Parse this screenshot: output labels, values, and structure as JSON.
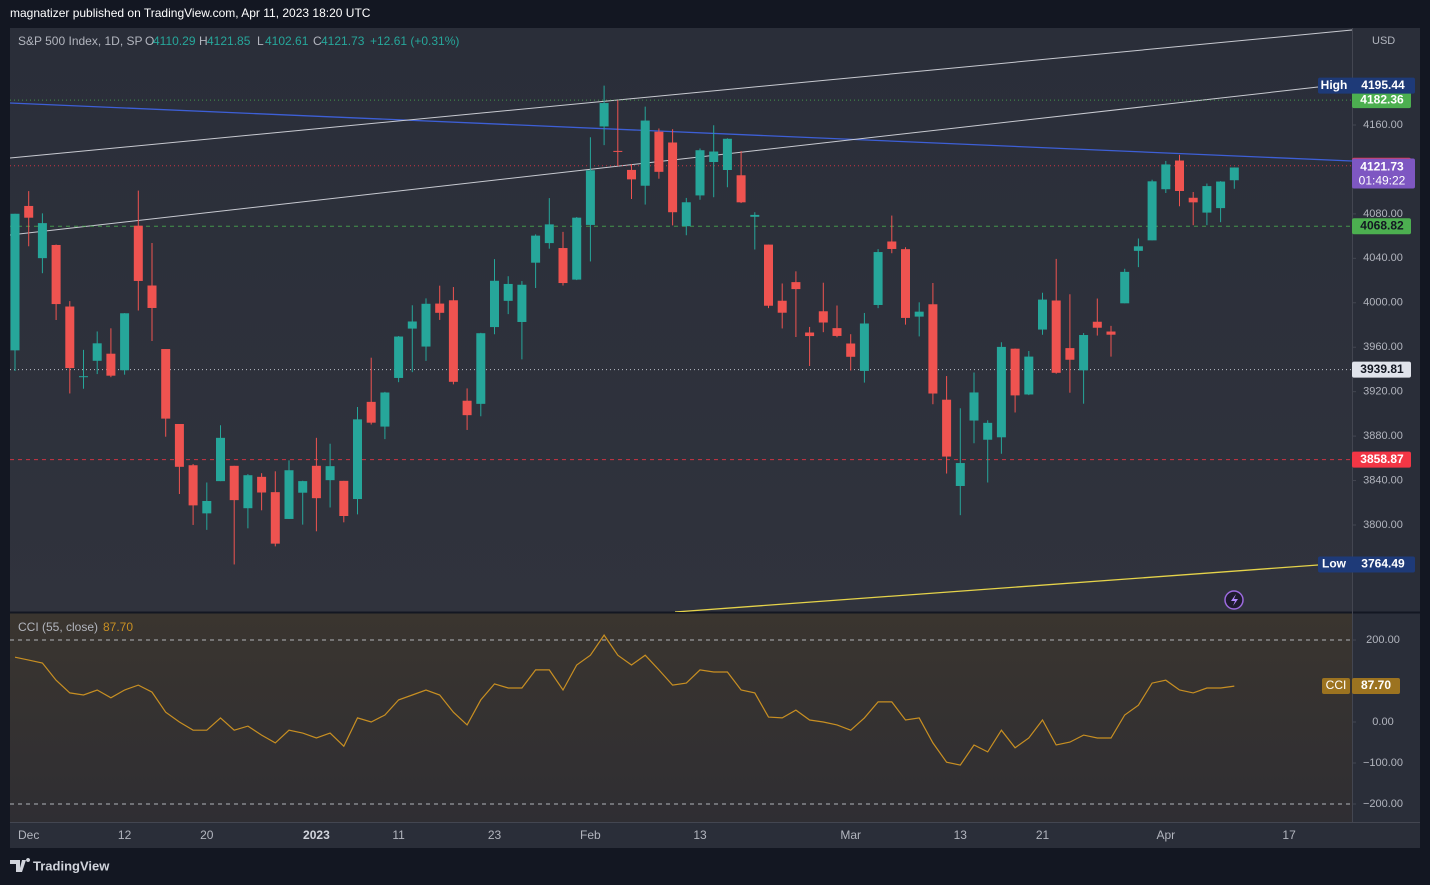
{
  "header": {
    "publisher": "magnatizer published on TradingView.com, Apr 11, 2023 18:20 UTC",
    "brand": "TradingView"
  },
  "chart_data": [
    {
      "type": "candlestick",
      "title": "S&P 500 Index, 1D, SP",
      "ohlc_labels": [
        "O",
        "H",
        "L",
        "C"
      ],
      "change_label": "+12.61 (+0.31%)",
      "currency": "USD",
      "up_color": "#26a69a",
      "down_color": "#ef5350",
      "categories": [
        null,
        "Dec",
        null,
        null,
        null,
        null,
        null,
        null,
        "12",
        null,
        null,
        null,
        null,
        null,
        "20",
        null,
        null,
        null,
        null,
        null,
        null,
        null,
        "2023",
        null,
        null,
        null,
        null,
        null,
        "11",
        null,
        null,
        null,
        null,
        null,
        null,
        "23",
        null,
        null,
        null,
        null,
        null,
        null,
        "Feb",
        null,
        null,
        null,
        null,
        null,
        null,
        null,
        "13",
        null,
        null,
        null,
        null,
        null,
        null,
        null,
        null,
        null,
        null,
        "Mar",
        null,
        null,
        null,
        null,
        null,
        null,
        null,
        "13",
        null,
        null,
        null,
        null,
        null,
        "21",
        null,
        null,
        null,
        null,
        null,
        null,
        null,
        null,
        "Apr",
        null,
        null,
        null,
        null,
        null
      ],
      "future_ticks": [
        "17"
      ],
      "open": [
        3957.18,
        4087.14,
        4040.17,
        4052.02,
        3996.63,
        3933.28,
        3947.79,
        3954.17,
        3939.29,
        4069.38,
        4015.54,
        3958.37,
        3890.91,
        3853.79,
        3810.47,
        3839.49,
        3853.26,
        3815.11,
        3843.34,
        3829.56,
        3805.45,
        3829.06,
        3853.29,
        3840.36,
        3839.74,
        3823.37,
        3910.82,
        3888.57,
        3932.35,
        3976.77,
        3960.6,
        3999.28,
        4002.25,
        3911.84,
        3909.04,
        3978.14,
        4001.74,
        3982.71,
        4036.08,
        4053.72,
        4049.27,
        4020.85,
        4070.07,
        4158.68,
        4136.69,
        4119.57,
        4105.35,
        4153.97,
        4144.25,
        4068.92,
        4096.62,
        4126.7,
        4119.5,
        4114.75,
        4077.39,
        4052.35,
        4001.83,
        4018.6,
        3973.24,
        3992.36,
        3977.19,
        3963.34,
        3938.68,
        3998.02,
        4055.15,
        4048.26,
        3987.55,
        3998.66,
        3912.77,
        3835.12,
        3894.01,
        3876.74,
        3878.93,
        3958.69,
        3917.47,
        3975.89,
        4002.04,
        3959.21,
        3939.21,
        3982.93,
        3974.13,
        3999.53,
        4046.74,
        4056.18,
        4102.2,
        4128.03,
        4094.5,
        4081.15,
        4085.2,
        4110.29
      ],
      "high": [
        4080.11,
        4100.51,
        4080.48,
        4052.45,
        4001.51,
        3957.57,
        3974.19,
        3977.02,
        3990.71,
        4100.96,
        4053.76,
        3958.37,
        3890.91,
        3854.86,
        3838.24,
        3889.82,
        3853.26,
        3845.8,
        3846.65,
        3848.32,
        3858.19,
        3839.85,
        3878.46,
        3873.16,
        3839.74,
        3906.19,
        3950.57,
        3919.83,
        3970.07,
        3997.76,
        4003.95,
        4015.39,
        4014.16,
        3922.94,
        3972.96,
        4039.31,
        4023.92,
        4019.55,
        4061.57,
        4094.21,
        4063.85,
        4077.16,
        4148.95,
        4195.44,
        4182.36,
        4124.63,
        4176.54,
        4156.85,
        4156.23,
        4094.36,
        4138.9,
        4159.77,
        4148.11,
        4136.54,
        4081.51,
        4052.35,
        4017.37,
        4028.3,
        3978.25,
        4018.05,
        3997.5,
        3971.73,
        3990.84,
        4048.29,
        4078.49,
        4050.0,
        4000.41,
        4017.81,
        3934.05,
        3905.05,
        3937.29,
        3894.26,
        3964.46,
        3958.91,
        3956.62,
        4009.08,
        4039.49,
        4007.66,
        3972.74,
        4003.83,
        3979.2,
        4030.59,
        4057.85,
        4110.75,
        4127.66,
        4133.13,
        4099.69,
        4107.32,
        4109.5,
        4121.85
      ],
      "low": [
        3938.58,
        4050.87,
        4026.63,
        3984.49,
        3918.39,
        3922.68,
        3935.83,
        3933.04,
        3935.3,
        3993.03,
        3965.65,
        3879.45,
        3827.91,
        3800.04,
        3795.62,
        3839.49,
        3764.49,
        3797.01,
        3813.22,
        3780.78,
        3805.45,
        3800.34,
        3794.33,
        3815.77,
        3802.42,
        3809.56,
        3890.42,
        3877.29,
        3928.54,
        3937.56,
        3947.67,
        3984.57,
        3926.59,
        3885.54,
        3897.86,
        3971.64,
        3989.79,
        3949.06,
        4013.29,
        4048.7,
        4015.55,
        4020.44,
        4037.2,
        4141.88,
        4123.36,
        4093.38,
        4088.39,
        4111.67,
        4069.67,
        4060.79,
        4092.67,
        4095.01,
        4103.98,
        4089.73,
        4047.95,
        3995.19,
        3976.9,
        3969.19,
        3943.08,
        3973.55,
        3968.98,
        3939.05,
        3928.16,
        3995.17,
        4044.61,
        3980.31,
        3969.76,
        3908.7,
        3846.32,
        3808.86,
        3873.63,
        3838.24,
        3864.11,
        3901.27,
        3916.89,
        3971.19,
        3936.17,
        3919.05,
        3909.16,
        3970.49,
        3951.53,
        3999.53,
        4032.1,
        4056.18,
        4098.79,
        4086.87,
        4069.84,
        4069.84,
        4072.55,
        4102.61
      ],
      "close": [
        4080.11,
        4076.57,
        4071.7,
        3998.84,
        3941.26,
        3933.92,
        3963.51,
        3934.38,
        3990.56,
        4019.65,
        3995.32,
        3895.75,
        3852.36,
        3817.66,
        3821.62,
        3878.44,
        3822.39,
        3844.82,
        3829.25,
        3783.22,
        3849.28,
        3839.5,
        3824.14,
        3852.97,
        3808.1,
        3895.08,
        3892.09,
        3919.25,
        3969.61,
        3983.17,
        3999.09,
        3990.97,
        3928.86,
        3898.85,
        3972.61,
        4019.81,
        4016.95,
        4016.22,
        4060.43,
        4070.56,
        4017.77,
        4076.6,
        4119.21,
        4179.76,
        4136.48,
        4111.08,
        4164.0,
        4117.86,
        4081.5,
        4090.46,
        4137.29,
        4136.13,
        4147.6,
        4090.41,
        4079.09,
        3997.34,
        3991.05,
        4012.32,
        3970.04,
        3982.24,
        3970.15,
        3951.39,
        3981.35,
        4045.64,
        4048.42,
        3986.37,
        3992.01,
        3918.32,
        3861.59,
        3855.76,
        3919.29,
        3891.93,
        3960.28,
        3916.64,
        3951.57,
        4002.87,
        3936.97,
        3948.72,
        3970.99,
        3977.53,
        3971.27,
        4027.81,
        4050.83,
        4109.31,
        4124.51,
        4100.6,
        4090.38,
        4105.02,
        4109.11,
        4121.73
      ],
      "ylim": [
        3721.7,
        4247.3
      ],
      "yticks": [
        {
          "value": 4160,
          "label": "4160.00"
        },
        {
          "value": 4080,
          "label": "4080.00"
        },
        {
          "value": 4040,
          "label": "4040.00"
        },
        {
          "value": 4000,
          "label": "4000.00"
        },
        {
          "value": 3960,
          "label": "3960.00"
        },
        {
          "value": 3920,
          "label": "3920.00"
        },
        {
          "value": 3880,
          "label": "3880.00"
        },
        {
          "value": 3840,
          "label": "3840.00"
        },
        {
          "value": 3800,
          "label": "3800.00"
        }
      ],
      "high_label": "High",
      "low_label": "Low",
      "extreme_color": "#1e3a78",
      "countdown": "01:49:22",
      "last_color": "#7e57c2",
      "price_lines": [
        {
          "value": 4182.36,
          "color": "#4caf50",
          "text_color": "#ffffff",
          "dash": "1 3"
        },
        {
          "value": 4123.36,
          "color": "#f23645",
          "text_color": "#ffffff",
          "dash": "1 3"
        },
        {
          "value": 4068.82,
          "color": "#4caf50",
          "text_color": "#131722",
          "dash": "4 4"
        },
        {
          "value": 3939.81,
          "color": "#e0e3eb",
          "text_color": "#131722",
          "dash": "1 3"
        },
        {
          "value": 3858.87,
          "color": "#f23645",
          "text_color": "#ffffff",
          "dash": "4 4"
        }
      ]
    },
    {
      "type": "line",
      "name": "CCI (55, close)",
      "tag": "CCI",
      "last_label": "87.70",
      "color": "#c88f22",
      "values": [
        158,
        151,
        144,
        102,
        71,
        66,
        78,
        59,
        78,
        90,
        73,
        24,
        0,
        -20,
        -20,
        10,
        -20,
        -10,
        -32,
        -51,
        -20,
        -27,
        -39,
        -27,
        -59,
        10,
        0,
        17,
        54,
        66,
        78,
        66,
        24,
        -7,
        54,
        93,
        83,
        83,
        127,
        127,
        78,
        139,
        163,
        212,
        163,
        139,
        163,
        127,
        90,
        95,
        127,
        122,
        122,
        78,
        71,
        12,
        10,
        29,
        5,
        0,
        -7,
        -20,
        10,
        49,
        49,
        5,
        10,
        -51,
        -98,
        -105,
        -56,
        -73,
        -20,
        -63,
        -39,
        5,
        -56,
        -49,
        -32,
        -39,
        -39,
        17,
        41,
        95,
        102,
        78,
        71,
        83,
        83,
        87.7
      ],
      "ylim": [
        -243.9,
        265.9
      ],
      "yticks": [
        {
          "value": 200,
          "label": "200.00"
        },
        {
          "value": 0,
          "label": "0.00"
        },
        {
          "value": -100,
          "label": "−100.00"
        },
        {
          "value": -200,
          "label": "−200.00"
        }
      ],
      "bands": [
        200,
        -200
      ]
    }
  ]
}
